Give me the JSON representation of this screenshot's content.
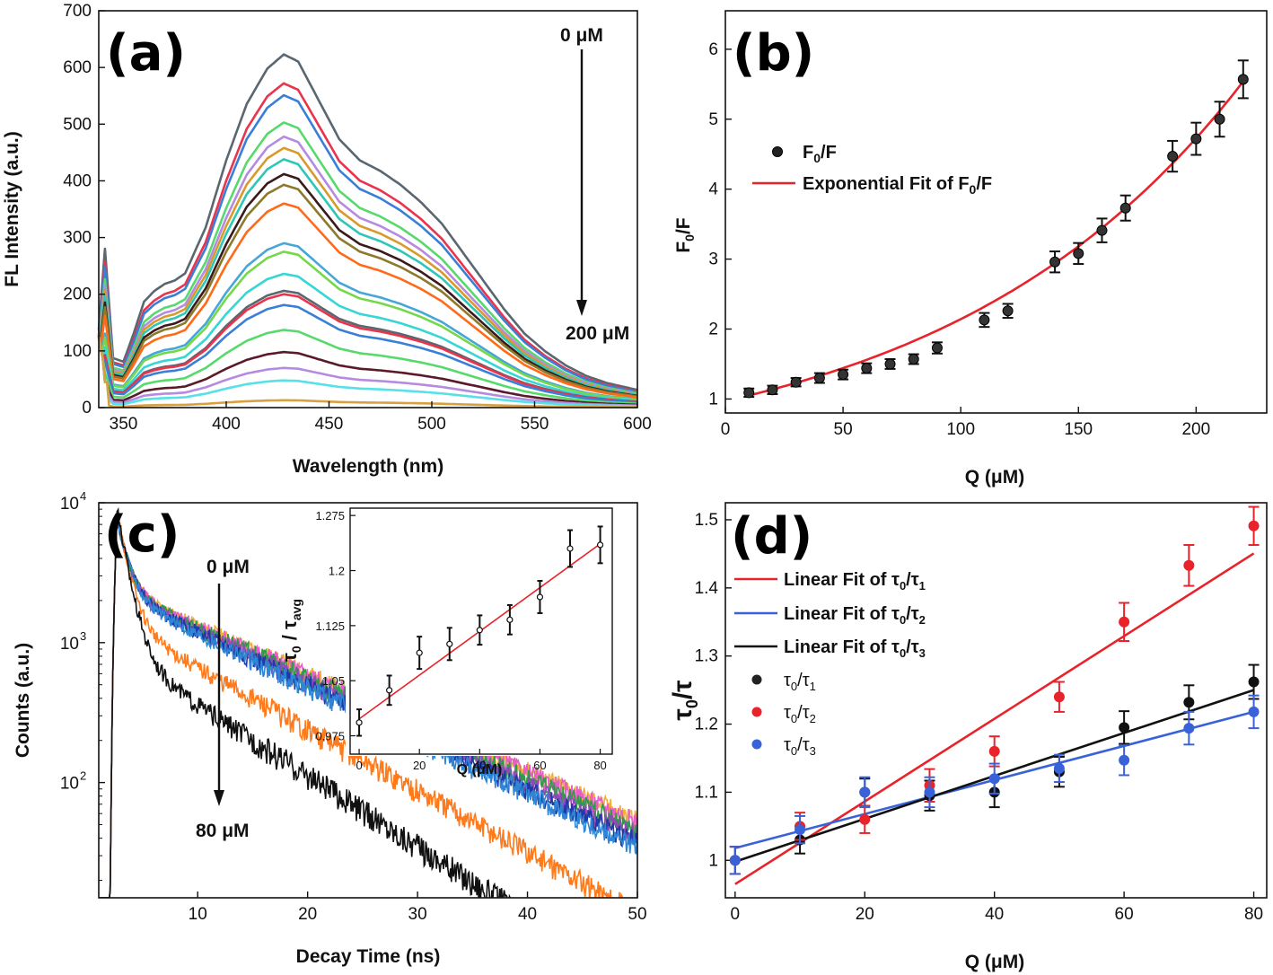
{
  "chart_data": [
    {
      "panel": "(a)",
      "type": "line",
      "xlabel": "Wavelength (nm)",
      "ylabel": "FL Intensity (a.u.)",
      "xlim": [
        338,
        600
      ],
      "ylim": [
        0,
        700
      ],
      "xticks": [
        350,
        400,
        450,
        500,
        550,
        600
      ],
      "yticks": [
        0,
        100,
        200,
        300,
        400,
        500,
        600,
        700
      ],
      "annotation_top": "0 μM",
      "annotation_bottom": "200 μM",
      "shape": {
        "x": [
          338,
          341,
          345,
          350,
          355,
          360,
          365,
          370,
          375,
          380,
          390,
          400,
          410,
          420,
          428,
          435,
          445,
          455,
          465,
          475,
          485,
          495,
          505,
          515,
          525,
          535,
          545,
          555,
          565,
          575,
          585,
          600
        ],
        "r": [
          0.22,
          0.45,
          0.14,
          0.13,
          0.21,
          0.3,
          0.33,
          0.35,
          0.36,
          0.38,
          0.51,
          0.7,
          0.86,
          0.96,
          1.0,
          0.98,
          0.87,
          0.76,
          0.7,
          0.67,
          0.63,
          0.58,
          0.52,
          0.44,
          0.36,
          0.28,
          0.21,
          0.16,
          0.12,
          0.09,
          0.07,
          0.05
        ]
      },
      "series": [
        {
          "peak": 623,
          "color": "#5a6670"
        },
        {
          "peak": 572,
          "color": "#e8344c"
        },
        {
          "peak": 551,
          "color": "#3a7fd6"
        },
        {
          "peak": 503,
          "color": "#57d96c"
        },
        {
          "peak": 478,
          "color": "#b48be0"
        },
        {
          "peak": 458,
          "color": "#d99a2c"
        },
        {
          "peak": 438,
          "color": "#2dc7b8"
        },
        {
          "peak": 412,
          "color": "#3a1a1a"
        },
        {
          "peak": 393,
          "color": "#8a7a2a"
        },
        {
          "peak": 360,
          "color": "#ff6a1a"
        },
        {
          "peak": 290,
          "color": "#46a6d6"
        },
        {
          "peak": 275,
          "color": "#74d84a"
        },
        {
          "peak": 236,
          "color": "#36d6d6"
        },
        {
          "peak": 206,
          "color": "#5a6670"
        },
        {
          "peak": 200,
          "color": "#e8344c"
        },
        {
          "peak": 181,
          "color": "#3a7fd6"
        },
        {
          "peak": 137,
          "color": "#57d96c"
        },
        {
          "peak": 98,
          "color": "#5a1a2a"
        },
        {
          "peak": 70,
          "color": "#b48be0"
        },
        {
          "peak": 48,
          "color": "#56e0e8"
        },
        {
          "peak": 13,
          "color": "#d9a040"
        }
      ]
    },
    {
      "panel": "(b)",
      "type": "scatter",
      "xlabel": "Q (μM)",
      "ylabel": "F0/F",
      "xlim": [
        0,
        230
      ],
      "ylim": [
        0.8,
        6.55
      ],
      "xticks": [
        0,
        50,
        100,
        150,
        200
      ],
      "yticks": [
        1,
        2,
        3,
        4,
        5,
        6
      ],
      "legend": [
        "F0/F",
        "Exponential Fit of F0/F"
      ],
      "x": [
        10,
        20,
        30,
        40,
        50,
        60,
        70,
        80,
        90,
        110,
        120,
        140,
        150,
        160,
        170,
        190,
        200,
        210,
        220
      ],
      "y": [
        1.09,
        1.13,
        1.24,
        1.3,
        1.35,
        1.44,
        1.5,
        1.57,
        1.73,
        2.13,
        2.26,
        2.96,
        3.08,
        3.41,
        3.73,
        4.47,
        4.72,
        5.0,
        5.57
      ],
      "err": [
        0.06,
        0.06,
        0.06,
        0.07,
        0.07,
        0.07,
        0.07,
        0.07,
        0.08,
        0.1,
        0.1,
        0.15,
        0.15,
        0.17,
        0.18,
        0.22,
        0.23,
        0.25,
        0.27
      ],
      "fit": {
        "type": "exponential",
        "a": 0.97,
        "b": 0.00792,
        "x_range": [
          10,
          220
        ],
        "color": "#e8232a"
      }
    },
    {
      "panel": "(c)",
      "type": "line",
      "xlabel": "Decay Time (ns)",
      "ylabel": "Counts (a.u.)",
      "y_scale": "log",
      "xlim": [
        1,
        50
      ],
      "ylim": [
        15,
        10000
      ],
      "xticks": [
        10,
        20,
        30,
        40,
        50
      ],
      "yticks": [
        100,
        1000,
        10000
      ],
      "ytick_labels": [
        [
          "10",
          "2"
        ],
        [
          "10",
          "3"
        ],
        [
          "10",
          "4"
        ]
      ],
      "annotation_top": "0 μM",
      "annotation_bottom": "80 μM",
      "series": [
        {
          "color": "#f0b03a",
          "fast_frac": 0.52,
          "tau_slow": 12.5,
          "noise": 0.35
        },
        {
          "color": "#e85ec8",
          "fast_frac": 0.52,
          "tau_slow": 12.4,
          "noise": 0.35
        },
        {
          "color": "#2e9a4a",
          "fast_frac": 0.53,
          "tau_slow": 12.1,
          "noise": 0.35
        },
        {
          "color": "#8e4ab6",
          "fast_frac": 0.54,
          "tau_slow": 11.8,
          "noise": 0.35
        },
        {
          "color": "#1e3aa6",
          "fast_frac": 0.55,
          "tau_slow": 11.6,
          "noise": 0.35
        },
        {
          "color": "#2f86d6",
          "fast_frac": 0.56,
          "tau_slow": 11.4,
          "noise": 0.35
        },
        {
          "color": "#ff7a1a",
          "fast_frac": 0.72,
          "tau_slow": 9.9,
          "noise": 0.4
        },
        {
          "color": "#101010",
          "fast_frac": 0.83,
          "tau_slow": 8.6,
          "noise": 0.45
        }
      ],
      "inset": {
        "xlabel": "Q (μM)",
        "ylabel": "τ0 / τavg",
        "xlim": [
          -3,
          84
        ],
        "ylim": [
          0.95,
          1.285
        ],
        "xticks": [
          0,
          20,
          40,
          60,
          80
        ],
        "yticks": [
          0.975,
          1.05,
          1.125,
          1.2,
          1.275
        ],
        "ytick_labels": [
          "0.975",
          "1.05",
          "1.125",
          "1.2",
          "1.275"
        ],
        "x": [
          0,
          10,
          20,
          30,
          40,
          50,
          60,
          70,
          80
        ],
        "y": [
          0.993,
          1.037,
          1.088,
          1.1,
          1.119,
          1.133,
          1.164,
          1.23,
          1.235
        ],
        "err": [
          0.018,
          0.02,
          0.022,
          0.022,
          0.02,
          0.02,
          0.022,
          0.025,
          0.025
        ],
        "fit": {
          "a": 0.998,
          "b": 0.00298,
          "color": "#e8232a"
        }
      }
    },
    {
      "panel": "(d)",
      "type": "scatter",
      "xlabel": "Q (μM)",
      "ylabel": "τ0/τ",
      "xlim": [
        -1.5,
        82
      ],
      "ylim": [
        0.945,
        1.525
      ],
      "xticks": [
        0,
        20,
        40,
        60,
        80
      ],
      "yticks": [
        1,
        1.1,
        1.2,
        1.3,
        1.4,
        1.5
      ],
      "ytick_labels": [
        "1",
        "1.1",
        "1.2",
        "1.3",
        "1.4",
        "1.5"
      ],
      "x": [
        0,
        10,
        20,
        30,
        40,
        50,
        60,
        70,
        80
      ],
      "series": [
        {
          "label": "τ0/τ1",
          "color": "#111111",
          "y": [
            1.0,
            1.03,
            1.1,
            1.095,
            1.1,
            1.13,
            1.195,
            1.232,
            1.262
          ],
          "err": [
            0.02,
            0.02,
            0.02,
            0.022,
            0.022,
            0.022,
            0.024,
            0.025,
            0.025
          ]
        },
        {
          "label": "τ0/τ2",
          "color": "#e8232a",
          "y": [
            1.0,
            1.05,
            1.06,
            1.11,
            1.16,
            1.24,
            1.35,
            1.433,
            1.491
          ],
          "err": [
            0.02,
            0.02,
            0.02,
            0.024,
            0.022,
            0.022,
            0.028,
            0.03,
            0.028
          ]
        },
        {
          "label": "τ0/τ3",
          "color": "#3a62d8",
          "y": [
            1.0,
            1.045,
            1.1,
            1.1,
            1.12,
            1.135,
            1.147,
            1.194,
            1.218
          ],
          "err": [
            0.02,
            0.02,
            0.022,
            0.022,
            0.022,
            0.02,
            0.022,
            0.024,
            0.024
          ]
        }
      ],
      "fits": [
        {
          "label": "Linear Fit of τ0/τ1",
          "color": "#e8232a",
          "a": 0.965,
          "b": 0.00607
        },
        {
          "label": "Linear Fit of τ0/τ2",
          "color": "#3a62d8",
          "a": 1.018,
          "b": 0.0025
        },
        {
          "label": "Linear Fit of τ0/τ3",
          "color": "#111111",
          "a": 0.998,
          "b": 0.00315
        }
      ]
    }
  ],
  "labels": {
    "a": {
      "tag": "(a)",
      "xlabel": "Wavelength (nm)",
      "ylabel": "FL Intensity (a.u.)",
      "annot_top": "0 μM",
      "annot_bottom": "200 μM"
    },
    "b": {
      "tag": "(b)",
      "xlabel": "Q (μM)",
      "leg_point_main": "F",
      "leg_point_sub": "0",
      "leg_point_tail": "/F",
      "leg_fit_main": "Exponential Fit of F",
      "leg_fit_sub": "0",
      "leg_fit_tail": "/F",
      "ylab_main": "F",
      "ylab_sub": "0",
      "ylab_tail": "/F"
    },
    "c": {
      "tag": "(c)",
      "xlabel": "Decay Time (ns)",
      "ylabel": "Counts (a.u.)",
      "annot_top": "0 μM",
      "annot_bottom": "80 μM",
      "inset_xlabel": "Q (μM)",
      "inset_ylab_main": "τ",
      "inset_ylab_sub0": "0",
      "inset_ylab_slash": " / τ",
      "inset_ylab_sub1": "avg"
    },
    "d": {
      "tag": "(d)",
      "xlabel": "Q (μM)",
      "ylab_main": "τ",
      "ylab_sub": "0",
      "ylab_tail": "/τ",
      "fit1_main": "Linear Fit of τ",
      "fit1_s0": "0",
      "fit1_mid": "/τ",
      "fit1_s1": "1",
      "fit2_main": "Linear Fit of τ",
      "fit2_s0": "0",
      "fit2_mid": "/τ",
      "fit2_s1": "2",
      "fit3_main": "Linear Fit of τ",
      "fit3_s0": "0",
      "fit3_mid": "/τ",
      "fit3_s1": "3",
      "pt1_main": "τ",
      "pt1_s0": "0",
      "pt1_mid": "/τ",
      "pt1_s1": "1",
      "pt2_main": "τ",
      "pt2_s0": "0",
      "pt2_mid": "/τ",
      "pt2_s1": "2",
      "pt3_main": "τ",
      "pt3_s0": "0",
      "pt3_mid": "/τ",
      "pt3_s1": "3"
    }
  }
}
